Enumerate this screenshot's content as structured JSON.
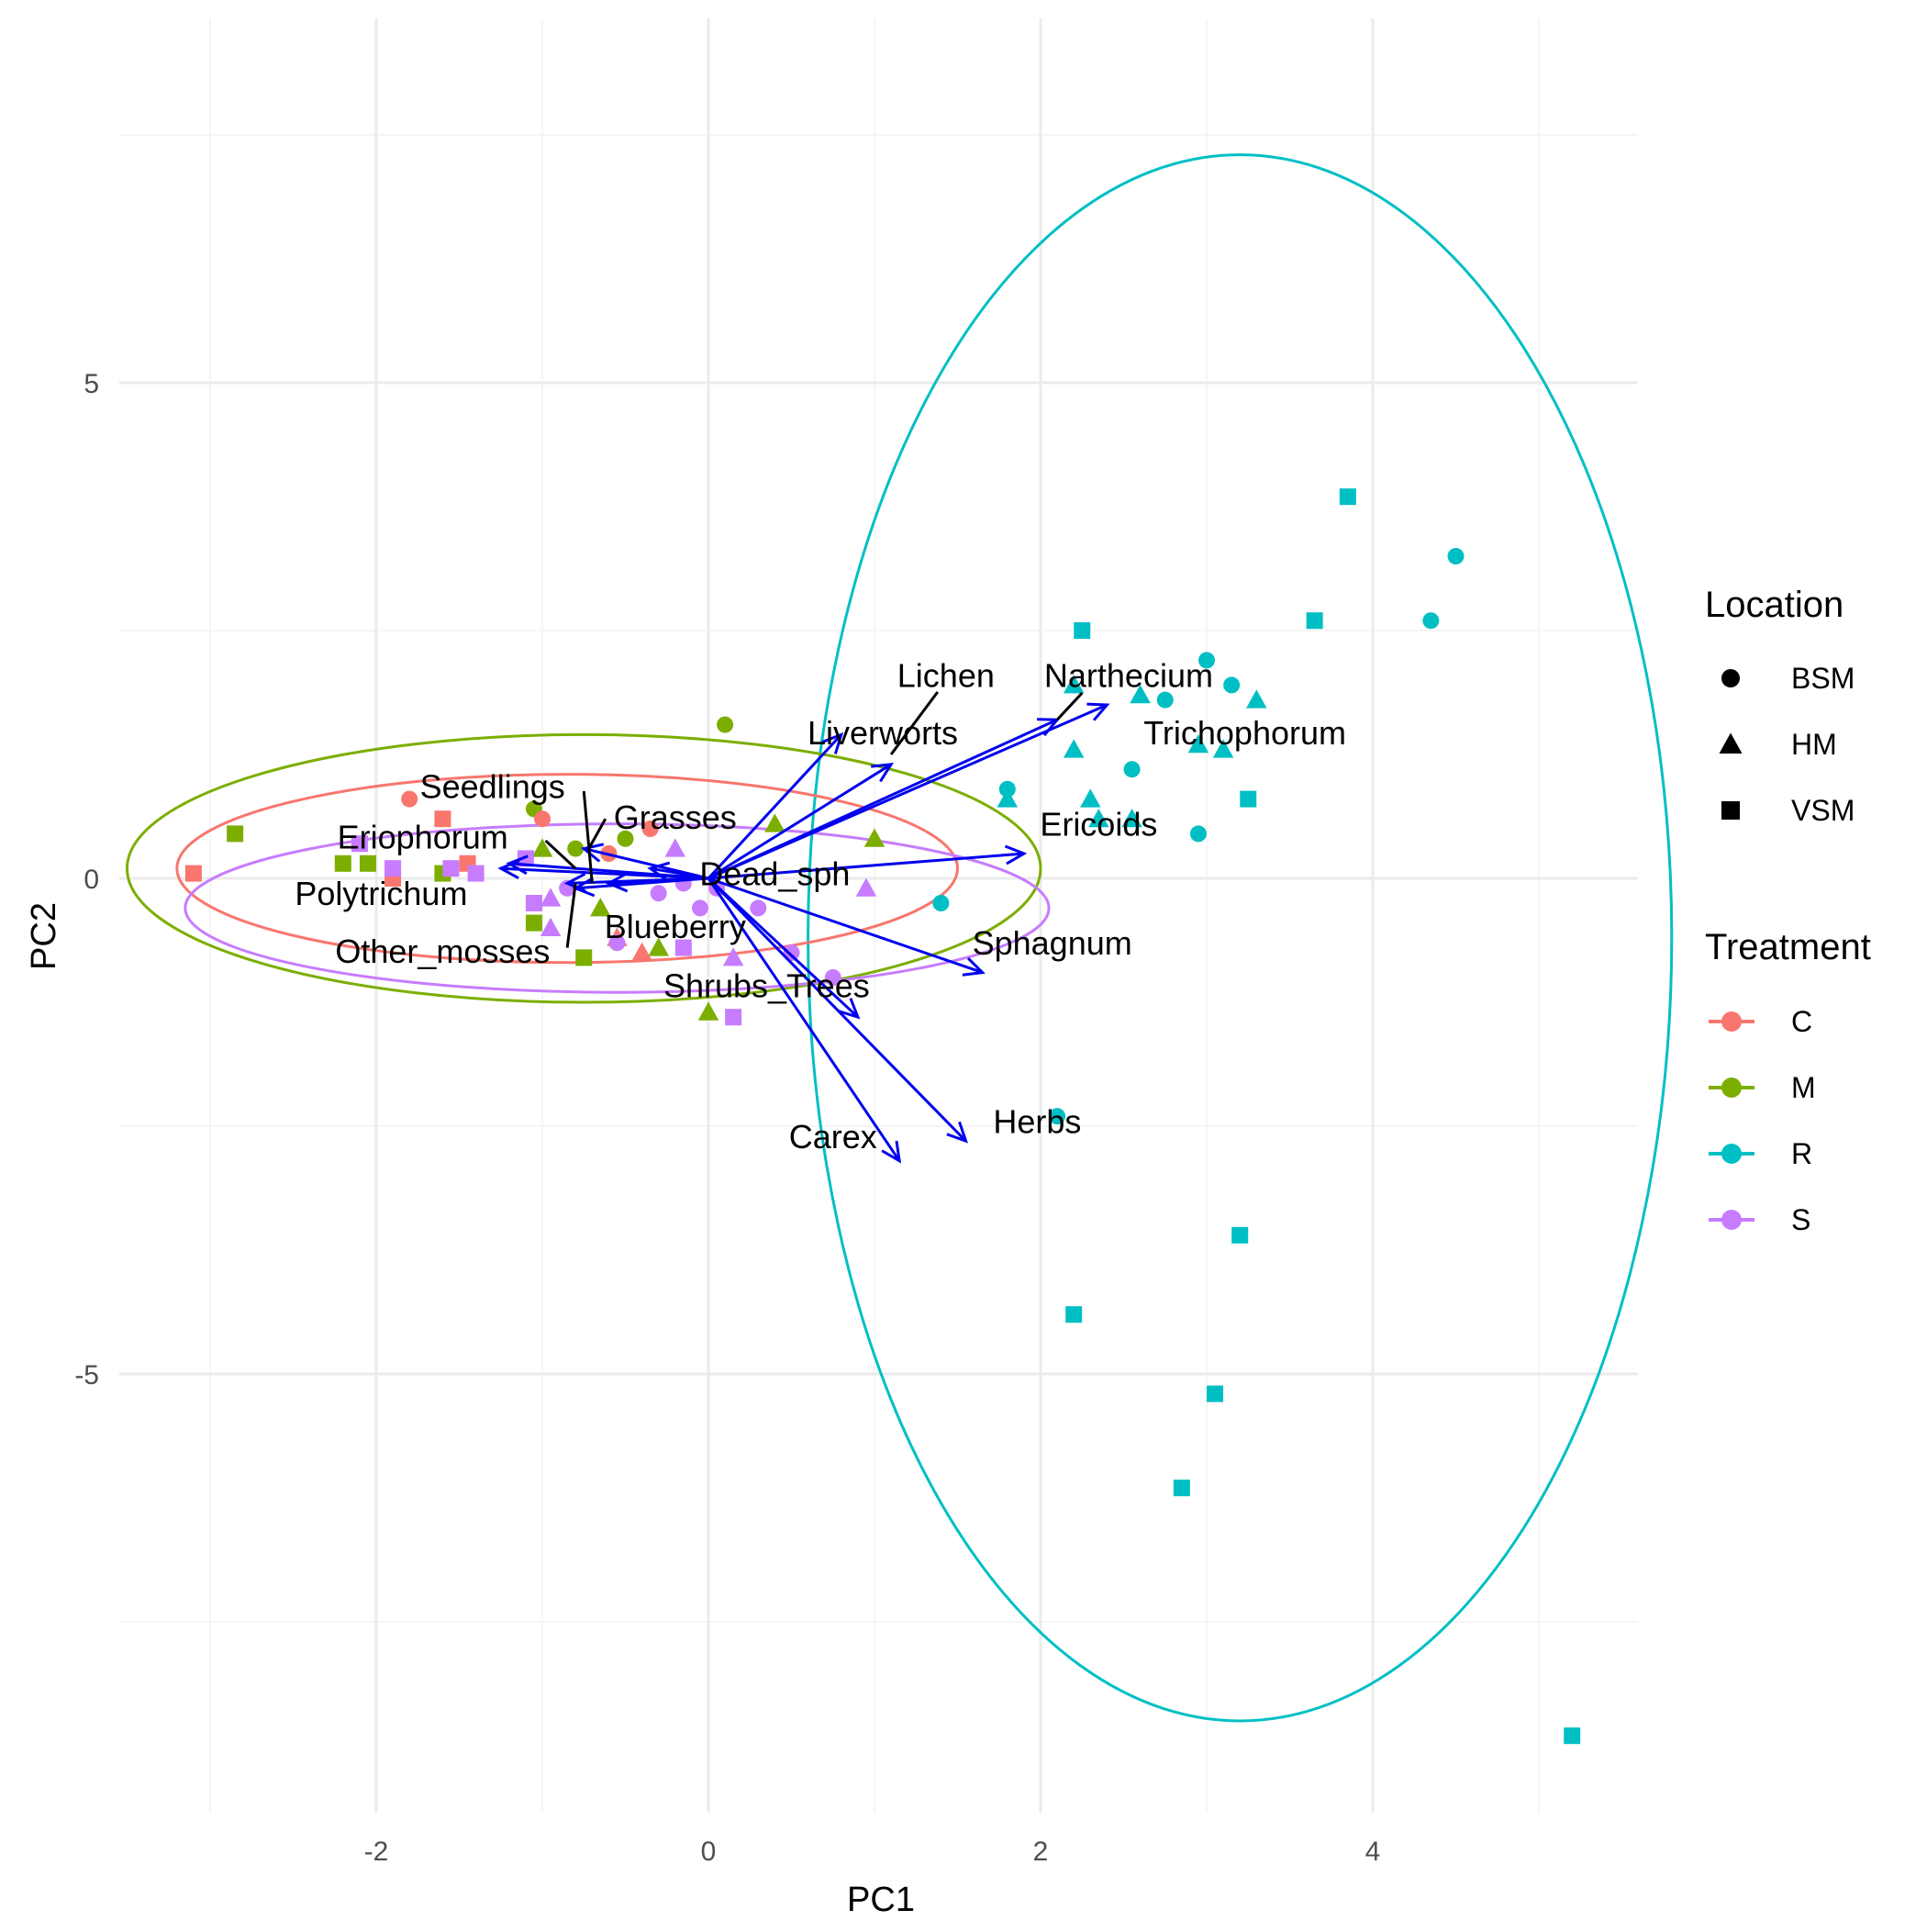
{
  "chart_data": {
    "type": "scatter",
    "title": "",
    "xlabel": "PC1",
    "ylabel": "PC2",
    "xlim": [
      -3.5,
      5.6
    ],
    "ylim": [
      -9.4,
      9.3
    ],
    "x_ticks": [
      -2,
      0,
      2,
      4
    ],
    "y_ticks": [
      5,
      0,
      -5
    ],
    "x_tick_labels": [
      "-2",
      "0",
      "2",
      "4"
    ],
    "y_tick_labels": [
      "5",
      "0",
      "-5"
    ],
    "grid": true,
    "legend_position": "right",
    "colors": {
      "C": "#F8766D",
      "M": "#7CAE00",
      "R": "#00BFC4",
      "S": "#C77CFF",
      "arrow": "#0000EE",
      "text": "#000000",
      "grid": "#EBEBEB"
    },
    "legend": {
      "location_title": "Location",
      "location_entries": [
        {
          "label": "BSM",
          "shape": "circle"
        },
        {
          "label": "HM",
          "shape": "triangle"
        },
        {
          "label": "VSM",
          "shape": "square"
        }
      ],
      "treatment_title": "Treatment",
      "treatment_entries": [
        {
          "label": "C",
          "color": "#F8766D"
        },
        {
          "label": "M",
          "color": "#7CAE00"
        },
        {
          "label": "R",
          "color": "#00BFC4"
        },
        {
          "label": "S",
          "color": "#C77CFF"
        }
      ]
    },
    "ellipses": [
      {
        "treatment": "R",
        "cx": 3.2,
        "cy": -0.6,
        "rx": 2.6,
        "ry": 7.9
      },
      {
        "treatment": "M",
        "cx": -0.75,
        "cy": 0.1,
        "rx": 2.75,
        "ry": 1.35
      },
      {
        "treatment": "C",
        "cx": -0.85,
        "cy": 0.1,
        "rx": 2.35,
        "ry": 0.95
      },
      {
        "treatment": "S",
        "cx": -0.55,
        "cy": -0.3,
        "rx": 2.6,
        "ry": 0.85
      }
    ],
    "arrows": [
      {
        "name": "Lichen",
        "x": 1.1,
        "y": 1.15
      },
      {
        "name": "Liverworts",
        "x": 0.8,
        "y": 1.45
      },
      {
        "name": "Narthecium",
        "x": 2.1,
        "y": 1.6
      },
      {
        "name": "Trichophorum",
        "x": 2.4,
        "y": 1.75
      },
      {
        "name": "Ericoids",
        "x": 1.9,
        "y": 0.25
      },
      {
        "name": "Sphagnum",
        "x": 1.65,
        "y": -0.95
      },
      {
        "name": "Shrubs_Trees",
        "x": 0.9,
        "y": -1.4
      },
      {
        "name": "Herbs",
        "x": 1.55,
        "y": -2.65
      },
      {
        "name": "Carex",
        "x": 1.15,
        "y": -2.85
      },
      {
        "name": "Dead_sph",
        "x": -0.35,
        "y": 0.1
      },
      {
        "name": "Blueberry",
        "x": -0.6,
        "y": -0.05
      },
      {
        "name": "Grasses",
        "x": -0.75,
        "y": 0.3
      },
      {
        "name": "Seedlings",
        "x": -0.8,
        "y": -0.1
      },
      {
        "name": "Eriophorum",
        "x": -1.2,
        "y": 0.15
      },
      {
        "name": "Polytrichum",
        "x": -1.25,
        "y": 0.1
      },
      {
        "name": "Other_mosses",
        "x": -0.85,
        "y": -0.05
      }
    ],
    "arrow_labels": [
      {
        "text": "Lichen",
        "x": 1.43,
        "y": 2.05
      },
      {
        "text": "Liverworts",
        "x": 1.05,
        "y": 1.47
      },
      {
        "text": "Narthecium",
        "x": 2.53,
        "y": 2.05
      },
      {
        "text": "Trichophorum",
        "x": 3.23,
        "y": 1.47
      },
      {
        "text": "Ericoids",
        "x": 2.35,
        "y": 0.55
      },
      {
        "text": "Sphagnum",
        "x": 2.07,
        "y": -0.65
      },
      {
        "text": "Shrubs_Trees",
        "x": 0.35,
        "y": -1.08
      },
      {
        "text": "Herbs",
        "x": 1.98,
        "y": -2.45
      },
      {
        "text": "Carex",
        "x": 0.75,
        "y": -2.6
      },
      {
        "text": "Dead_sph",
        "x": 0.4,
        "y": 0.05
      },
      {
        "text": "Blueberry",
        "x": -0.2,
        "y": -0.48
      },
      {
        "text": "Grasses",
        "x": -0.2,
        "y": 0.62
      },
      {
        "text": "Seedlings",
        "x": -1.3,
        "y": 0.93
      },
      {
        "text": "Eriophorum",
        "x": -1.72,
        "y": 0.42
      },
      {
        "text": "Polytrichum",
        "x": -1.97,
        "y": -0.15
      },
      {
        "text": "Other_mosses",
        "x": -1.6,
        "y": -0.73
      }
    ],
    "leader_lines": [
      {
        "label": "Lichen",
        "x1": 1.38,
        "y1": 1.88,
        "x2": 1.1,
        "y2": 1.25
      },
      {
        "label": "Narthecium",
        "x1": 2.25,
        "y1": 1.87,
        "x2": 2.1,
        "y2": 1.6
      },
      {
        "label": "Seedlings",
        "x1": -0.75,
        "y1": 0.88,
        "x2": -0.7,
        "y2": -0.05
      },
      {
        "label": "Grasses",
        "x1": -0.62,
        "y1": 0.6,
        "x2": -0.72,
        "y2": 0.3
      },
      {
        "label": "Eriophorum",
        "x1": -0.98,
        "y1": 0.38,
        "x2": -0.8,
        "y2": 0.1
      },
      {
        "label": "Other_mosses",
        "x1": -0.85,
        "y1": -0.7,
        "x2": -0.8,
        "y2": -0.05
      }
    ],
    "points": [
      {
        "t": "R",
        "s": "square",
        "x": 3.85,
        "y": 3.85
      },
      {
        "t": "R",
        "s": "circle",
        "x": 4.5,
        "y": 3.25
      },
      {
        "t": "R",
        "s": "circle",
        "x": 4.35,
        "y": 2.6
      },
      {
        "t": "R",
        "s": "square",
        "x": 3.65,
        "y": 2.6
      },
      {
        "t": "R",
        "s": "square",
        "x": 2.25,
        "y": 2.5
      },
      {
        "t": "R",
        "s": "circle",
        "x": 3.0,
        "y": 2.2
      },
      {
        "t": "R",
        "s": "circle",
        "x": 3.15,
        "y": 1.95
      },
      {
        "t": "R",
        "s": "circle",
        "x": 2.75,
        "y": 1.8
      },
      {
        "t": "R",
        "s": "triangle",
        "x": 3.3,
        "y": 1.8
      },
      {
        "t": "R",
        "s": "triangle",
        "x": 2.6,
        "y": 1.85
      },
      {
        "t": "R",
        "s": "triangle",
        "x": 2.2,
        "y": 1.95
      },
      {
        "t": "R",
        "s": "triangle",
        "x": 2.95,
        "y": 1.35
      },
      {
        "t": "R",
        "s": "triangle",
        "x": 3.1,
        "y": 1.3
      },
      {
        "t": "R",
        "s": "triangle",
        "x": 2.2,
        "y": 1.3
      },
      {
        "t": "R",
        "s": "circle",
        "x": 2.55,
        "y": 1.1
      },
      {
        "t": "R",
        "s": "square",
        "x": 3.25,
        "y": 0.8
      },
      {
        "t": "R",
        "s": "circle",
        "x": 1.8,
        "y": 0.9
      },
      {
        "t": "R",
        "s": "triangle",
        "x": 1.8,
        "y": 0.8
      },
      {
        "t": "R",
        "s": "triangle",
        "x": 2.3,
        "y": 0.8
      },
      {
        "t": "R",
        "s": "triangle",
        "x": 2.35,
        "y": 0.6
      },
      {
        "t": "R",
        "s": "triangle",
        "x": 2.55,
        "y": 0.6
      },
      {
        "t": "R",
        "s": "circle",
        "x": 2.95,
        "y": 0.45
      },
      {
        "t": "R",
        "s": "circle",
        "x": 1.4,
        "y": -0.25
      },
      {
        "t": "R",
        "s": "circle",
        "x": 2.1,
        "y": -2.4
      },
      {
        "t": "R",
        "s": "square",
        "x": 3.2,
        "y": -3.6
      },
      {
        "t": "R",
        "s": "square",
        "x": 2.2,
        "y": -4.4
      },
      {
        "t": "R",
        "s": "square",
        "x": 3.05,
        "y": -5.2
      },
      {
        "t": "R",
        "s": "square",
        "x": 2.85,
        "y": -6.15
      },
      {
        "t": "R",
        "s": "square",
        "x": 5.2,
        "y": -8.65
      },
      {
        "t": "M",
        "s": "circle",
        "x": 0.1,
        "y": 1.55
      },
      {
        "t": "M",
        "s": "square",
        "x": -2.85,
        "y": 0.45
      },
      {
        "t": "M",
        "s": "triangle",
        "x": 1.0,
        "y": 0.4
      },
      {
        "t": "M",
        "s": "triangle",
        "x": 0.4,
        "y": 0.55
      },
      {
        "t": "M",
        "s": "circle",
        "x": -1.05,
        "y": 0.7
      },
      {
        "t": "M",
        "s": "circle",
        "x": -0.5,
        "y": 0.4
      },
      {
        "t": "M",
        "s": "circle",
        "x": -0.8,
        "y": 0.3
      },
      {
        "t": "M",
        "s": "triangle",
        "x": -1.0,
        "y": 0.3
      },
      {
        "t": "M",
        "s": "square",
        "x": -2.2,
        "y": 0.15
      },
      {
        "t": "M",
        "s": "square",
        "x": -2.05,
        "y": 0.15
      },
      {
        "t": "M",
        "s": "square",
        "x": -1.6,
        "y": 0.05
      },
      {
        "t": "M",
        "s": "square",
        "x": -1.05,
        "y": -0.45
      },
      {
        "t": "M",
        "s": "triangle",
        "x": -0.65,
        "y": -0.3
      },
      {
        "t": "M",
        "s": "triangle",
        "x": -0.3,
        "y": -0.7
      },
      {
        "t": "M",
        "s": "square",
        "x": -0.75,
        "y": -0.8
      },
      {
        "t": "M",
        "s": "triangle",
        "x": 0.0,
        "y": -1.35
      },
      {
        "t": "C",
        "s": "square",
        "x": -3.1,
        "y": 0.05
      },
      {
        "t": "C",
        "s": "circle",
        "x": -1.8,
        "y": 0.8
      },
      {
        "t": "C",
        "s": "square",
        "x": -1.6,
        "y": 0.6
      },
      {
        "t": "C",
        "s": "circle",
        "x": -1.0,
        "y": 0.6
      },
      {
        "t": "C",
        "s": "circle",
        "x": -0.35,
        "y": 0.5
      },
      {
        "t": "C",
        "s": "square",
        "x": -1.9,
        "y": 0.0
      },
      {
        "t": "C",
        "s": "square",
        "x": -1.45,
        "y": 0.15
      },
      {
        "t": "C",
        "s": "circle",
        "x": -0.6,
        "y": 0.25
      },
      {
        "t": "C",
        "s": "triangle",
        "x": -0.55,
        "y": -0.6
      },
      {
        "t": "C",
        "s": "triangle",
        "x": -0.4,
        "y": -0.75
      },
      {
        "t": "S",
        "s": "square",
        "x": -2.1,
        "y": 0.35
      },
      {
        "t": "S",
        "s": "square",
        "x": -1.9,
        "y": 0.1
      },
      {
        "t": "S",
        "s": "square",
        "x": -1.55,
        "y": 0.1
      },
      {
        "t": "S",
        "s": "square",
        "x": -1.4,
        "y": 0.05
      },
      {
        "t": "S",
        "s": "square",
        "x": -1.1,
        "y": 0.2
      },
      {
        "t": "S",
        "s": "triangle",
        "x": -0.95,
        "y": -0.2
      },
      {
        "t": "S",
        "s": "square",
        "x": -1.05,
        "y": -0.25
      },
      {
        "t": "S",
        "s": "triangle",
        "x": -0.95,
        "y": -0.5
      },
      {
        "t": "S",
        "s": "circle",
        "x": -0.85,
        "y": -0.1
      },
      {
        "t": "S",
        "s": "circle",
        "x": -0.55,
        "y": -0.65
      },
      {
        "t": "S",
        "s": "circle",
        "x": -0.3,
        "y": -0.15
      },
      {
        "t": "S",
        "s": "triangle",
        "x": -0.2,
        "y": 0.3
      },
      {
        "t": "S",
        "s": "circle",
        "x": -0.15,
        "y": -0.05
      },
      {
        "t": "S",
        "s": "circle",
        "x": -0.05,
        "y": -0.3
      },
      {
        "t": "S",
        "s": "circle",
        "x": 0.05,
        "y": -0.1
      },
      {
        "t": "S",
        "s": "circle",
        "x": 0.3,
        "y": -0.3
      },
      {
        "t": "S",
        "s": "triangle",
        "x": 0.15,
        "y": -0.8
      },
      {
        "t": "S",
        "s": "square",
        "x": -0.15,
        "y": -0.7
      },
      {
        "t": "S",
        "s": "square",
        "x": 0.15,
        "y": -1.4
      },
      {
        "t": "S",
        "s": "circle",
        "x": 0.5,
        "y": -0.75
      },
      {
        "t": "S",
        "s": "circle",
        "x": 0.75,
        "y": -1.0
      },
      {
        "t": "S",
        "s": "triangle",
        "x": 0.95,
        "y": -0.1
      }
    ]
  }
}
